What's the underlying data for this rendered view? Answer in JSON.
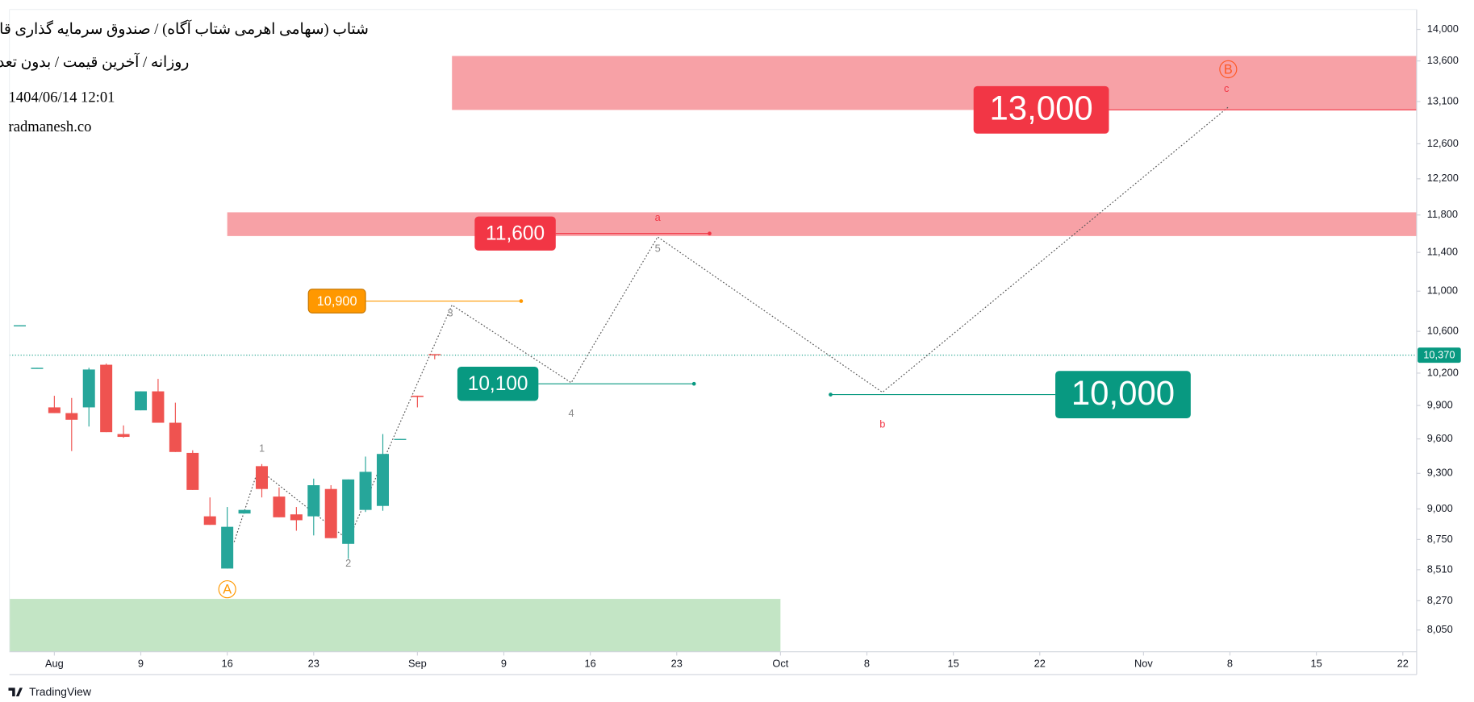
{
  "chart_data": {
    "type": "candlestick",
    "title": "شتاب (سهامی اهرمی شتاب آگاه) / صندوق سرمایه گذاری قابل معامله",
    "subtitle": "روزانه / آخرین قیمت / بدون تعدیل",
    "datetime": "1404/06/14 12:01",
    "source": "radmanesh.co",
    "branding": "TradingView",
    "up_color": "#26a69a",
    "down_color": "#ef5350",
    "log_scale": true,
    "x": [
      -2,
      -1,
      0,
      1,
      2,
      3,
      4,
      5,
      6,
      7,
      8,
      9,
      10,
      11,
      12,
      13,
      14,
      15,
      16,
      17,
      18,
      19,
      20,
      21,
      22
    ],
    "open": [
      10660,
      10250,
      9883,
      9831,
      9883,
      10279,
      9643,
      9856,
      10030,
      9744,
      9477,
      8939,
      8519,
      8962,
      9362,
      9103,
      8955,
      8939,
      9167,
      8715,
      8992,
      9025,
      9600,
      9990,
      10380
    ],
    "high": [
      10660,
      10250,
      9989,
      9969,
      10250,
      10290,
      9720,
      10030,
      10146,
      9926,
      9500,
      9096,
      9016,
      8992,
      9380,
      9180,
      9016,
      9255,
      9199,
      9248,
      9445,
      9643,
      9600,
      9990,
      10380
    ],
    "low": [
      10660,
      10250,
      9831,
      9493,
      9710,
      9660,
      9610,
      9856,
      9744,
      9485,
      9159,
      8869,
      8519,
      8962,
      9096,
      8931,
      8821,
      8783,
      8761,
      8595,
      8975,
      8985,
      9600,
      9883,
      10330
    ],
    "close": [
      10660,
      10250,
      9831,
      9771,
      10234,
      9660,
      9618,
      10030,
      9744,
      9485,
      9159,
      8869,
      8853,
      8992,
      9167,
      8931,
      8907,
      9199,
      8761,
      9248,
      9313,
      9468,
      9600,
      9978,
      10369
    ],
    "xlim": [
      -2.6,
      78.8
    ],
    "xticks": [
      {
        "value": 0,
        "label": "Aug"
      },
      {
        "value": 5,
        "label": "9"
      },
      {
        "value": 10,
        "label": "16"
      },
      {
        "value": 15,
        "label": "23"
      },
      {
        "value": 21,
        "label": "Sep"
      },
      {
        "value": 26,
        "label": "9"
      },
      {
        "value": 31,
        "label": "16"
      },
      {
        "value": 36,
        "label": "23"
      },
      {
        "value": 42,
        "label": "Oct"
      },
      {
        "value": 47,
        "label": "8"
      },
      {
        "value": 52,
        "label": "15"
      },
      {
        "value": 57,
        "label": "22"
      },
      {
        "value": 63,
        "label": "Nov"
      },
      {
        "value": 68,
        "label": "8"
      },
      {
        "value": 73,
        "label": "15"
      },
      {
        "value": 78,
        "label": "22"
      }
    ],
    "ylim": [
      7890,
      14260
    ],
    "yticks": [
      {
        "value": 14000,
        "label": "14,000"
      },
      {
        "value": 13600,
        "label": "13,600"
      },
      {
        "value": 13100,
        "label": "13,100"
      },
      {
        "value": 12600,
        "label": "12,600"
      },
      {
        "value": 12200,
        "label": "12,200"
      },
      {
        "value": 11800,
        "label": "11,800"
      },
      {
        "value": 11400,
        "label": "11,400"
      },
      {
        "value": 11000,
        "label": "11,000"
      },
      {
        "value": 10600,
        "label": "10,600"
      },
      {
        "value": 10200,
        "label": "10,200"
      },
      {
        "value": 9900,
        "label": "9,900"
      },
      {
        "value": 9600,
        "label": "9,600"
      },
      {
        "value": 9300,
        "label": "9,300"
      },
      {
        "value": 9000,
        "label": "9,000"
      },
      {
        "value": 8750,
        "label": "8,750"
      },
      {
        "value": 8510,
        "label": "8,510"
      },
      {
        "value": 8270,
        "label": "8,270"
      },
      {
        "value": 8050,
        "label": "8,050"
      }
    ],
    "last_price": {
      "value": 10370,
      "label": "10,370",
      "color": "#089981"
    },
    "zones": [
      {
        "x": [
          23,
          78.8
        ],
        "y": [
          12999,
          13662
        ],
        "color": "#f7a1a6"
      },
      {
        "x": [
          10,
          78.8
        ],
        "y": [
          11573,
          11829
        ],
        "color": "#f7a1a6"
      },
      {
        "x": [
          -2.6,
          42
        ],
        "y": [
          7890,
          8284
        ],
        "color": "#c3e5c5"
      }
    ],
    "levels": [
      {
        "value": 13000,
        "label": "13,000",
        "x": [
          61,
          78.8
        ],
        "color": "#f23645",
        "side": "left",
        "size": "large",
        "dot": false
      },
      {
        "value": 11600,
        "label": "11,600",
        "x": [
          29,
          37.9
        ],
        "color": "#f23645",
        "side": "left",
        "size": "medium",
        "dot": true
      },
      {
        "value": 10900,
        "label": "10,900",
        "x": [
          18,
          27
        ],
        "color": "#ff9800",
        "side": "left",
        "size": "small",
        "dot": true
      },
      {
        "value": 10100,
        "label": "10,100",
        "x": [
          28,
          37
        ],
        "color": "#089981",
        "side": "left",
        "size": "medium",
        "dot": true
      },
      {
        "value": 10000,
        "label": "10,000",
        "x": [
          44.9,
          57.9
        ],
        "color": "#089981",
        "side": "right",
        "size": "large",
        "dot": true
      }
    ],
    "wave": {
      "x": [
        10.4,
        11.8,
        17,
        23,
        29.9,
        34.9,
        47.9,
        67.9
      ],
      "y": [
        8730,
        9338,
        8746,
        10860,
        10110,
        11564,
        10021,
        13033
      ],
      "color": "#555555"
    },
    "wave_labels": [
      {
        "text": "1",
        "x": 12,
        "y": 9519,
        "color": "#888888",
        "circle": false
      },
      {
        "text": "2",
        "x": 17,
        "y": 8564,
        "color": "#888888",
        "circle": false
      },
      {
        "text": "3",
        "x": 22.9,
        "y": 10784,
        "color": "#888888",
        "circle": false
      },
      {
        "text": "4",
        "x": 29.9,
        "y": 9831,
        "color": "#888888",
        "circle": false
      },
      {
        "text": "5",
        "x": 34.9,
        "y": 11443,
        "color": "#888888",
        "circle": false
      },
      {
        "text": "a",
        "x": 34.9,
        "y": 11777,
        "color": "#f23645",
        "circle": false
      },
      {
        "text": "b",
        "x": 47.9,
        "y": 9735,
        "color": "#f23645",
        "circle": false
      },
      {
        "text": "c",
        "x": 67.8,
        "y": 13262,
        "color": "#f23645",
        "circle": false
      },
      {
        "text": "A",
        "x": 10,
        "y": 8358,
        "color": "#ff9800",
        "circle": true
      },
      {
        "text": "B",
        "x": 67.9,
        "y": 13496,
        "color": "#ff5722",
        "circle": true
      }
    ]
  }
}
